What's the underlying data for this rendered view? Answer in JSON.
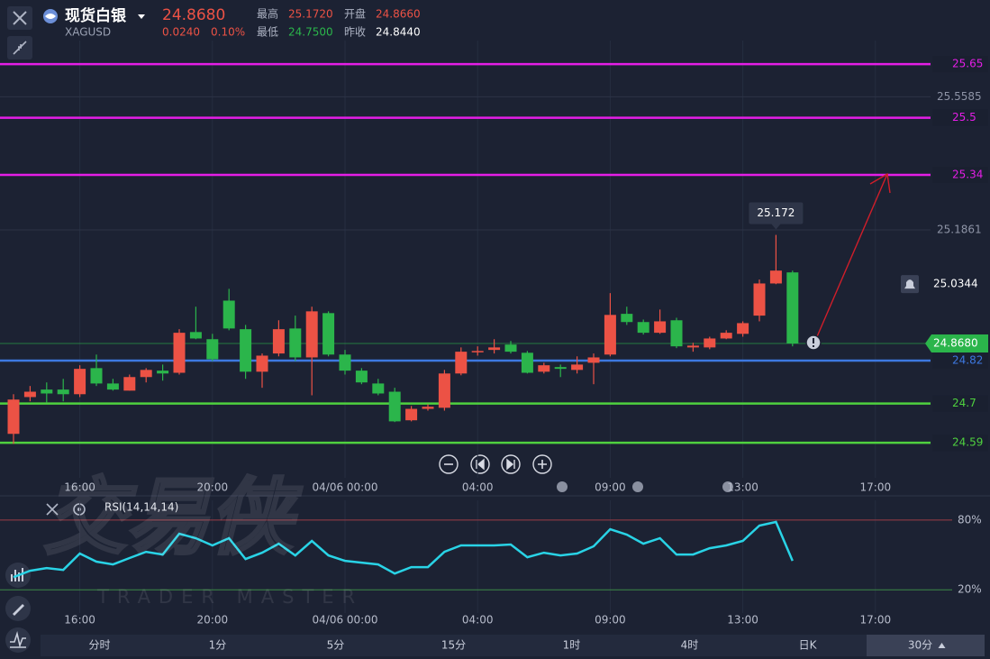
{
  "header": {
    "name": "现货白银",
    "symbol": "XAGUSD",
    "price": "24.8680",
    "change": "0.0240",
    "change_pct": "0.10%",
    "high_label": "最高",
    "high": "25.1720",
    "open_label": "开盘",
    "open": "24.8660",
    "low_label": "最低",
    "low": "24.7500",
    "prev_label": "昨收",
    "prev": "24.8440"
  },
  "watermark": {
    "logo": "交易侠",
    "text": "TRADER MASTER"
  },
  "chart_data": [
    {
      "type": "candlestick",
      "up_color": "#ec5245",
      "down_color": "#2bb54b",
      "categories": [
        null,
        null,
        null,
        null,
        "16:00",
        null,
        null,
        null,
        null,
        null,
        null,
        null,
        "20:00",
        null,
        null,
        null,
        null,
        null,
        null,
        null,
        "04/06 00:00",
        null,
        null,
        null,
        null,
        null,
        null,
        null,
        "04:00",
        null,
        null,
        null,
        null,
        null,
        null,
        null,
        "09:00",
        null,
        null,
        null,
        null,
        null,
        null,
        null,
        "13:00",
        null,
        null,
        null,
        null,
        null,
        null,
        null,
        "17:00",
        null,
        null,
        null
      ],
      "open": [
        24.615,
        24.718,
        24.739,
        24.739,
        24.726,
        24.799,
        24.756,
        24.736,
        24.774,
        24.792,
        24.786,
        24.9,
        24.88,
        24.988,
        24.908,
        24.789,
        24.84,
        24.91,
        24.829,
        24.953,
        24.837,
        24.792,
        24.756,
        24.733,
        24.653,
        24.685,
        24.688,
        24.784,
        24.845,
        24.85,
        24.865,
        24.842,
        24.789,
        24.802,
        24.794,
        24.814,
        24.837,
        24.951,
        24.928,
        24.898,
        24.933,
        24.857,
        24.857,
        24.882,
        24.895,
        24.946,
        25.036,
        25.067,
        null,
        null,
        null,
        null,
        null,
        null,
        null,
        null
      ],
      "high": [
        24.726,
        24.749,
        24.759,
        24.769,
        24.807,
        24.837,
        24.769,
        24.781,
        24.799,
        24.809,
        24.908,
        24.971,
        24.895,
        25.021,
        24.92,
        24.84,
        24.933,
        24.946,
        24.971,
        24.958,
        24.85,
        24.799,
        24.769,
        24.744,
        24.693,
        24.698,
        24.794,
        24.857,
        24.86,
        24.88,
        24.875,
        24.847,
        24.814,
        24.809,
        24.832,
        24.84,
        25.009,
        24.971,
        24.935,
        24.963,
        24.94,
        24.87,
        24.887,
        24.905,
        24.93,
        25.047,
        25.172,
        25.072,
        null,
        null,
        null,
        null,
        null,
        null,
        null,
        null
      ],
      "low": [
        24.587,
        24.706,
        24.703,
        24.706,
        24.718,
        24.749,
        24.736,
        24.736,
        24.759,
        24.764,
        24.781,
        24.88,
        24.819,
        24.905,
        24.769,
        24.744,
        24.832,
        24.819,
        24.723,
        24.832,
        24.781,
        24.754,
        24.723,
        24.648,
        24.65,
        24.68,
        24.68,
        24.779,
        24.834,
        24.84,
        24.84,
        24.784,
        24.784,
        24.774,
        24.784,
        24.754,
        24.832,
        24.92,
        24.893,
        24.895,
        24.855,
        24.845,
        24.852,
        24.88,
        24.887,
        24.93,
        25.034,
        24.86,
        null,
        null,
        null,
        null,
        null,
        null,
        null,
        null
      ],
      "close": [
        24.711,
        24.733,
        24.728,
        24.726,
        24.797,
        24.756,
        24.739,
        24.774,
        24.794,
        24.784,
        24.898,
        24.882,
        24.824,
        24.91,
        24.789,
        24.834,
        24.908,
        24.829,
        24.958,
        24.837,
        24.792,
        24.759,
        24.728,
        24.65,
        24.685,
        24.691,
        24.784,
        24.845,
        24.847,
        24.857,
        24.845,
        24.786,
        24.807,
        24.797,
        24.809,
        24.829,
        24.948,
        24.928,
        24.898,
        24.93,
        24.86,
        24.862,
        24.882,
        24.898,
        24.925,
        25.036,
        25.072,
        24.868,
        null,
        null,
        null,
        null,
        null,
        null,
        null,
        null
      ],
      "ylim": [
        24.492,
        25.716
      ],
      "yticks": [
        25.5585,
        25.1861
      ],
      "grid": true,
      "levels": [
        {
          "value": 25.65,
          "color": "#e41ee6"
        },
        {
          "value": 25.5,
          "color": "#e41ee6"
        },
        {
          "value": 25.34,
          "color": "#e41ee6"
        },
        {
          "value": 24.82,
          "color": "#3d78e0"
        },
        {
          "value": 24.7,
          "color": "#4fd13f"
        },
        {
          "value": 24.59,
          "color": "#4fd13f"
        }
      ],
      "last": {
        "value": 24.868,
        "label": "24.8680"
      },
      "last_color": "#2bb54b",
      "alert": 25.0344,
      "high_callout": 25.172
    },
    {
      "type": "line",
      "title": "RSI(14,14,14)",
      "color": "#29d3e6",
      "categories": [
        null,
        null,
        null,
        null,
        "16:00",
        null,
        null,
        null,
        null,
        null,
        null,
        null,
        "20:00",
        null,
        null,
        null,
        null,
        null,
        null,
        null,
        "04/06 00:00",
        null,
        null,
        null,
        null,
        null,
        null,
        null,
        "04:00",
        null,
        null,
        null,
        null,
        null,
        null,
        null,
        "09:00",
        null,
        null,
        null,
        null,
        null,
        null,
        null,
        "13:00",
        null,
        null,
        null,
        null,
        null,
        null,
        null,
        "17:00",
        null,
        null,
        null
      ],
      "values": [
        30.9,
        36.4,
        38.7,
        37.1,
        51.2,
        44.2,
        41.8,
        47.3,
        52.7,
        50.4,
        68.3,
        64.4,
        58.2,
        64.4,
        46.5,
        51.9,
        59.7,
        49.6,
        62.1,
        49.6,
        44.9,
        43.4,
        41.8,
        34,
        39.5,
        39.5,
        52.7,
        58.2,
        58.2,
        58.2,
        59,
        48,
        51.9,
        49.6,
        51.2,
        57.4,
        72.2,
        67.5,
        59.7,
        64.4,
        50.4,
        50.4,
        55.8,
        58.2,
        62.1,
        75.3,
        78.4,
        44.9,
        null,
        null,
        null,
        null,
        null,
        null,
        null,
        null
      ],
      "ylim": [
        0,
        97
      ],
      "yticks": [
        {
          "value": 80,
          "label": "80%"
        },
        {
          "value": 20,
          "label": "20%"
        }
      ],
      "ytick_colors": [
        "#9b3c46",
        "#3c8a47"
      ]
    }
  ],
  "tabs": [
    "分时",
    "1分",
    "5分",
    "15分",
    "1时",
    "4时",
    "日K",
    "30分"
  ]
}
